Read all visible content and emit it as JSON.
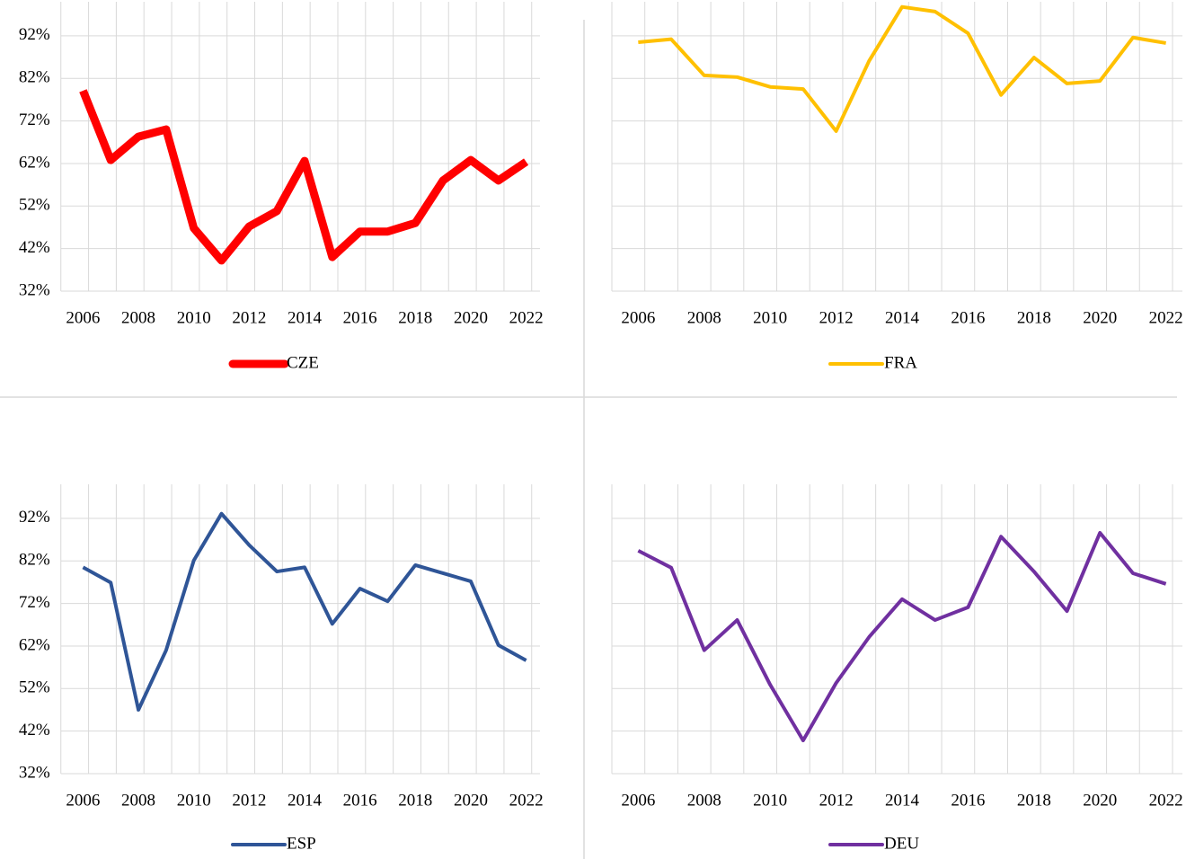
{
  "chart_data": [
    {
      "type": "line",
      "categories": [
        "2006",
        null,
        "2008",
        null,
        "2010",
        null,
        "2012",
        null,
        "2014",
        null,
        "2016",
        null,
        "2018",
        null,
        "2020",
        null,
        "2022"
      ],
      "series": [
        {
          "name": "CZE",
          "color": "#ff0000",
          "values": [
            79.1,
            62.8,
            68.3,
            70,
            46.8,
            39.2,
            47.2,
            50.8,
            62.6,
            40,
            46,
            46,
            48,
            58,
            62.8,
            58,
            62.4
          ]
        }
      ],
      "line_width": 9,
      "ylim": [
        32,
        100
      ],
      "yticks": [
        {
          "value": 32,
          "label": "32%"
        },
        {
          "value": 42,
          "label": "42%"
        },
        {
          "value": 52,
          "label": "52%"
        },
        {
          "value": 62,
          "label": "62%"
        },
        {
          "value": 72,
          "label": "72%"
        },
        {
          "value": 82,
          "label": "82%"
        },
        {
          "value": 92,
          "label": "92%"
        }
      ],
      "grid": true,
      "legend": "bottom"
    },
    {
      "type": "line",
      "categories": [
        "2006",
        null,
        "2008",
        null,
        "2010",
        null,
        "2012",
        null,
        "2014",
        null,
        "2016",
        null,
        "2018",
        null,
        "2020",
        null,
        "2022"
      ],
      "series": [
        {
          "name": "FRA",
          "color": "#ffc000",
          "values": [
            90.5,
            91.2,
            82.7,
            82.3,
            80,
            79.5,
            69.6,
            86.1,
            98.8,
            97.7,
            92.6,
            78.1,
            86.9,
            80.8,
            81.4,
            91.6,
            90.3
          ]
        }
      ],
      "line_width": 4,
      "ylim": [
        32,
        100
      ],
      "yticks": [
        32,
        42,
        52,
        62,
        72,
        82,
        92
      ],
      "grid": true,
      "legend": "bottom"
    },
    {
      "type": "line",
      "categories": [
        "2006",
        null,
        "2008",
        null,
        "2010",
        null,
        "2012",
        null,
        "2014",
        null,
        "2016",
        null,
        "2018",
        null,
        "2020",
        null,
        "2022"
      ],
      "series": [
        {
          "name": "ESP",
          "color": "#2f5597",
          "values": [
            80.5,
            76.9,
            47,
            61,
            82.1,
            93.1,
            85.7,
            79.5,
            80.5,
            67.2,
            75.5,
            72.5,
            81,
            79.1,
            77.2,
            62.2,
            58.6
          ]
        }
      ],
      "line_width": 4,
      "ylim": [
        32,
        100
      ],
      "yticks": [
        {
          "value": 32,
          "label": "32%"
        },
        {
          "value": 42,
          "label": "42%"
        },
        {
          "value": 52,
          "label": "52%"
        },
        {
          "value": 62,
          "label": "62%"
        },
        {
          "value": 72,
          "label": "72%"
        },
        {
          "value": 82,
          "label": "82%"
        },
        {
          "value": 92,
          "label": "92%"
        }
      ],
      "grid": true,
      "legend": "bottom"
    },
    {
      "type": "line",
      "categories": [
        "2006",
        null,
        "2008",
        null,
        "2010",
        null,
        "2012",
        null,
        "2014",
        null,
        "2016",
        null,
        "2018",
        null,
        "2020",
        null,
        "2022"
      ],
      "series": [
        {
          "name": "DEU",
          "color": "#7030a0",
          "values": [
            84.4,
            80.4,
            61,
            68.1,
            52.9,
            39.8,
            53.3,
            64.1,
            73,
            68.1,
            71.1,
            87.7,
            79.5,
            70.2,
            88.6,
            79.1,
            76.6
          ]
        }
      ],
      "line_width": 4,
      "ylim": [
        32,
        100
      ],
      "yticks": [
        32,
        42,
        52,
        62,
        72,
        82,
        92
      ],
      "grid": true,
      "legend": "bottom"
    }
  ]
}
